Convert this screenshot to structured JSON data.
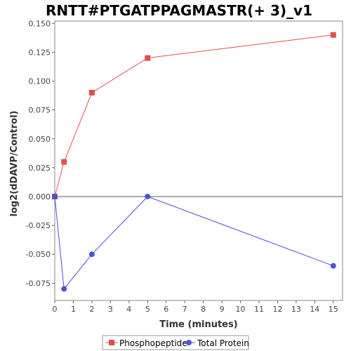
{
  "chart_data": {
    "type": "line",
    "title": "RNTT#PTGATPPAGMASTR(+ 3)_v1",
    "xlabel": "Time (minutes)",
    "ylabel": "log2(dDAVP/Control)",
    "xlim": [
      0,
      15.5
    ],
    "ylim": [
      -0.09,
      0.152
    ],
    "xticks": [
      0,
      1,
      2,
      3,
      4,
      5,
      6,
      7,
      8,
      9,
      10,
      11,
      12,
      13,
      14,
      15
    ],
    "yticks": [
      -0.075,
      -0.05,
      -0.025,
      0.0,
      0.025,
      0.05,
      0.075,
      0.1,
      0.125,
      0.15
    ],
    "ytick_labels": [
      "-0.075",
      "-0.050",
      "-0.025",
      "0.000",
      "0.025",
      "0.050",
      "0.075",
      "0.100",
      "0.125",
      "0.150"
    ],
    "grid": false,
    "zero_line": true,
    "legend_position": "bottom",
    "series": [
      {
        "name": "Phosphopeptide",
        "color": "#e05050",
        "marker": "square",
        "x": [
          0,
          0.5,
          2,
          5,
          15
        ],
        "y": [
          0.0,
          0.03,
          0.09,
          0.12,
          0.14
        ]
      },
      {
        "name": "Total Protein",
        "color": "#5050e0",
        "marker": "circle",
        "x": [
          0,
          0.5,
          2,
          5,
          15
        ],
        "y": [
          0.0,
          -0.08,
          -0.05,
          0.0,
          -0.06
        ]
      }
    ]
  }
}
